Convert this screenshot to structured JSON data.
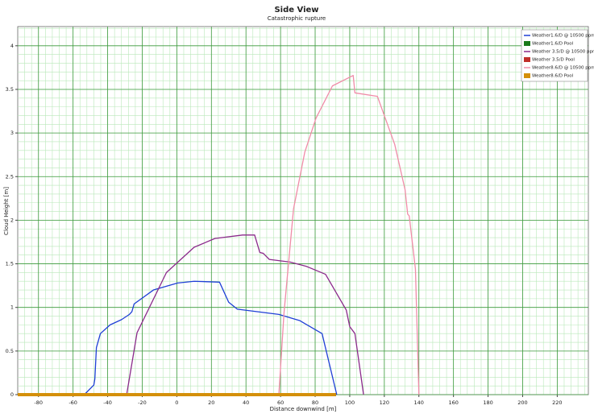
{
  "chart_data": {
    "type": "line",
    "title": "Side View",
    "subtitle": "Catastrophic rupture",
    "x_label": "Distance downwind [m]",
    "y_label": "Cloud Height [m]",
    "xlim": [
      -92,
      238
    ],
    "ylim": [
      0,
      4.22
    ],
    "xticks": [
      -80,
      -60,
      -40,
      -20,
      0,
      20,
      40,
      60,
      80,
      100,
      120,
      140,
      160,
      180,
      200,
      220
    ],
    "yticks": [
      0,
      0.5,
      1,
      1.5,
      2,
      2.5,
      3,
      3.5,
      4
    ],
    "grid": true,
    "minor_grid": true,
    "legend_position": "upper right",
    "series": [
      {
        "name": "Weather1.6/D @ 10500 ppm",
        "color": "#1f3fd6",
        "x": [
          -53.5,
          -48,
          -47.4,
          -46.5,
          -44.2,
          -38.6,
          -32,
          -27.4,
          -26,
          -24.7,
          -13.5,
          0.5,
          10,
          24.7,
          30,
          35,
          47,
          59,
          71,
          84,
          92.5
        ],
        "values": [
          0,
          0.11,
          0.18,
          0.54,
          0.7,
          0.8,
          0.86,
          0.92,
          0.95,
          1.04,
          1.2,
          1.28,
          1.3,
          1.29,
          1.06,
          0.98,
          0.95,
          0.92,
          0.85,
          0.7,
          0
        ]
      },
      {
        "name": "Weather1.6/D Pool",
        "color": "#1a7a1a",
        "width": 4,
        "x": [
          -92,
          92
        ],
        "values": [
          0,
          0
        ]
      },
      {
        "name": "Weather 3.5/D @ 10500 ppm",
        "color": "#8b2a8b",
        "x": [
          -29,
          -23,
          -6,
          10,
          22,
          38,
          45,
          48,
          50,
          53.5,
          65.5,
          75,
          86,
          98,
          100,
          103,
          108
        ],
        "values": [
          0,
          0.71,
          1.4,
          1.69,
          1.79,
          1.83,
          1.83,
          1.63,
          1.62,
          1.55,
          1.52,
          1.47,
          1.38,
          0.97,
          0.78,
          0.7,
          0
        ]
      },
      {
        "name": "Weather 3.5/D Pool",
        "color": "#c0302a",
        "width": 4,
        "x": [
          -92,
          92
        ],
        "values": [
          0,
          0
        ]
      },
      {
        "name": "Weather8.6/D @ 10500 ppm",
        "color": "#f08ca8",
        "x": [
          59,
          62,
          67.5,
          74,
          80.5,
          90,
          102,
          103,
          116,
          126,
          132,
          133.5,
          134.4,
          138,
          140
        ],
        "values": [
          0,
          0.94,
          2.13,
          2.78,
          3.17,
          3.54,
          3.66,
          3.46,
          3.42,
          2.87,
          2.35,
          2.07,
          2.05,
          1.44,
          0
        ]
      },
      {
        "name": "Weather8.6/D Pool",
        "color": "#d4900a",
        "width": 4,
        "x": [
          -92,
          92
        ],
        "values": [
          0,
          0
        ]
      }
    ]
  }
}
